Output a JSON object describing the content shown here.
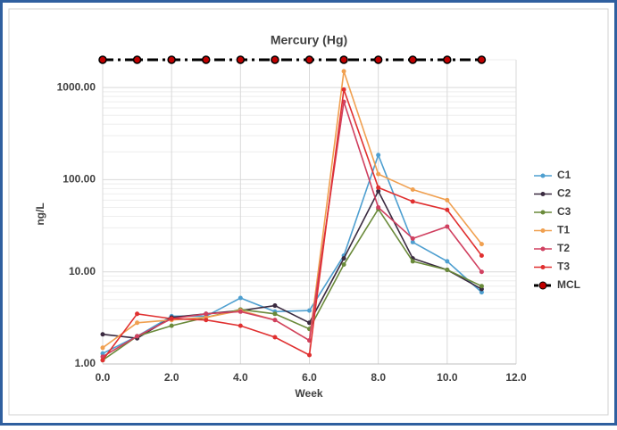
{
  "chart_data": {
    "type": "line",
    "title": "Mercury  (Hg)",
    "x_label": "Week",
    "y_label": "ng/L",
    "log_y": true,
    "grid": true,
    "x": [
      0,
      1,
      2,
      3,
      4,
      5,
      6,
      7,
      8,
      9,
      10,
      11
    ],
    "xlim": [
      0,
      12
    ],
    "xticks": [
      {
        "value": 0,
        "label": "0.0"
      },
      {
        "value": 2,
        "label": "2.0"
      },
      {
        "value": 4,
        "label": "4.0"
      },
      {
        "value": 6,
        "label": "6.0"
      },
      {
        "value": 8,
        "label": "8.0"
      },
      {
        "value": 10,
        "label": "10.0"
      },
      {
        "value": 12,
        "label": "12.0"
      }
    ],
    "ylim": [
      1,
      2000
    ],
    "yticks": [
      {
        "value": 1,
        "label": "1.00"
      },
      {
        "value": 10,
        "label": "10.00"
      },
      {
        "value": 100,
        "label": "100.00"
      },
      {
        "value": 1000,
        "label": "1000.00"
      }
    ],
    "legend": "right",
    "series": [
      {
        "name": "C1",
        "color": "#4e9fd0",
        "values": [
          1.3,
          2.0,
          3.3,
          3.3,
          5.2,
          3.7,
          3.8,
          15,
          185,
          21,
          13,
          6
        ]
      },
      {
        "name": "C2",
        "color": "#3a2a40",
        "values": [
          2.1,
          1.9,
          3.2,
          3.5,
          3.8,
          4.3,
          2.8,
          14,
          75,
          14,
          10.5,
          6.5
        ]
      },
      {
        "name": "C3",
        "color": "#6a8a3a",
        "values": [
          1.1,
          2.0,
          2.6,
          3.2,
          3.9,
          3.5,
          2.4,
          12,
          48,
          13,
          10.5,
          7
        ]
      },
      {
        "name": "T1",
        "color": "#f0a050",
        "values": [
          1.5,
          2.8,
          3.0,
          3.2,
          3.8,
          3.0,
          1.8,
          1500,
          115,
          78,
          60,
          20
        ]
      },
      {
        "name": "T2",
        "color": "#d04060",
        "values": [
          1.2,
          2.0,
          3.1,
          3.5,
          3.7,
          3.0,
          1.8,
          700,
          50,
          23,
          31,
          10
        ]
      },
      {
        "name": "T3",
        "color": "#e03030",
        "values": [
          1.1,
          3.5,
          3.1,
          3.0,
          2.6,
          1.95,
          1.25,
          950,
          82,
          58,
          47,
          15
        ]
      },
      {
        "name": "MCL",
        "color": "#000000",
        "dash": true,
        "values": [
          2000,
          2000,
          2000,
          2000,
          2000,
          2000,
          2000,
          2000,
          2000,
          2000,
          2000,
          2000
        ]
      }
    ]
  }
}
